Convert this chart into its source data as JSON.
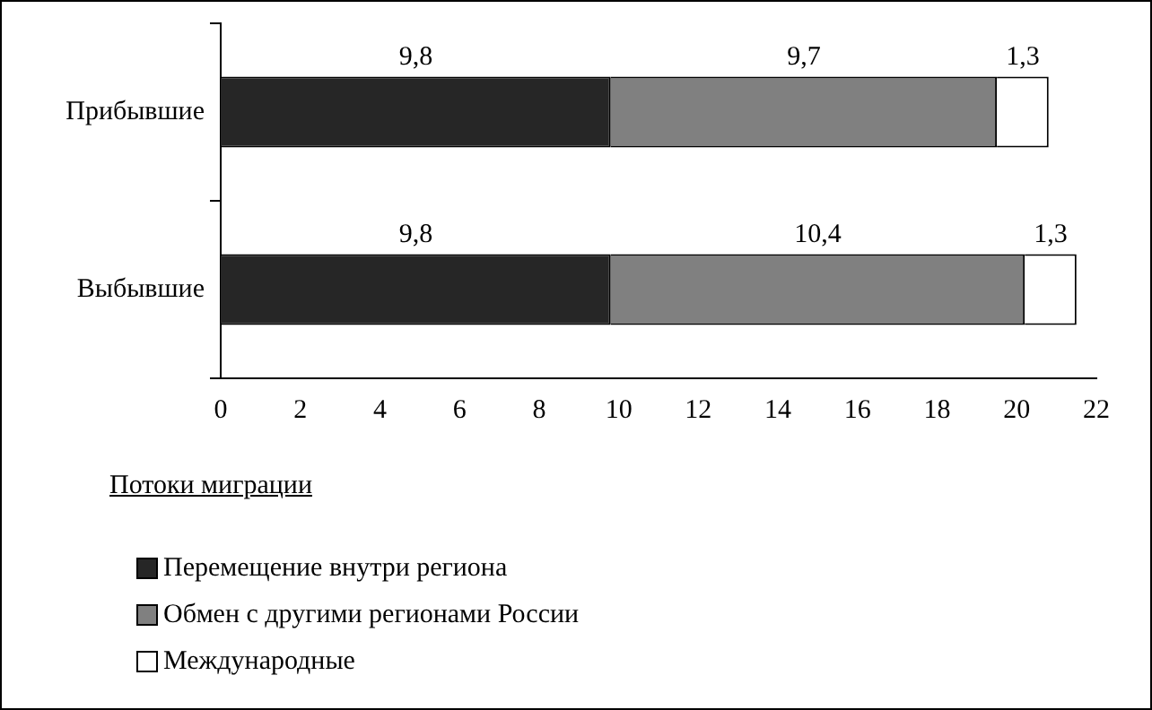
{
  "chart_data": {
    "type": "bar",
    "orientation": "horizontal",
    "stacked": true,
    "categories": [
      "Прибывшие",
      "Выбывшие"
    ],
    "series": [
      {
        "name": "Перемещение внутри региона",
        "color": "#262626",
        "values": [
          9.8,
          9.8
        ],
        "value_labels": [
          "9,8",
          "9,8"
        ]
      },
      {
        "name": "Обмен с другими регионами России",
        "color": "#808080",
        "values": [
          9.7,
          10.4
        ],
        "value_labels": [
          "9,7",
          "10,4"
        ]
      },
      {
        "name": "Международные",
        "color": "#ffffff",
        "values": [
          1.3,
          1.3
        ],
        "value_labels": [
          "1,3",
          "1,3"
        ]
      }
    ],
    "xlim": [
      0,
      22
    ],
    "xticks": [
      0,
      2,
      4,
      6,
      8,
      10,
      12,
      14,
      16,
      18,
      20,
      22
    ],
    "grid": false,
    "legend": "bottom left",
    "legend_title": "Потоки миграции"
  }
}
